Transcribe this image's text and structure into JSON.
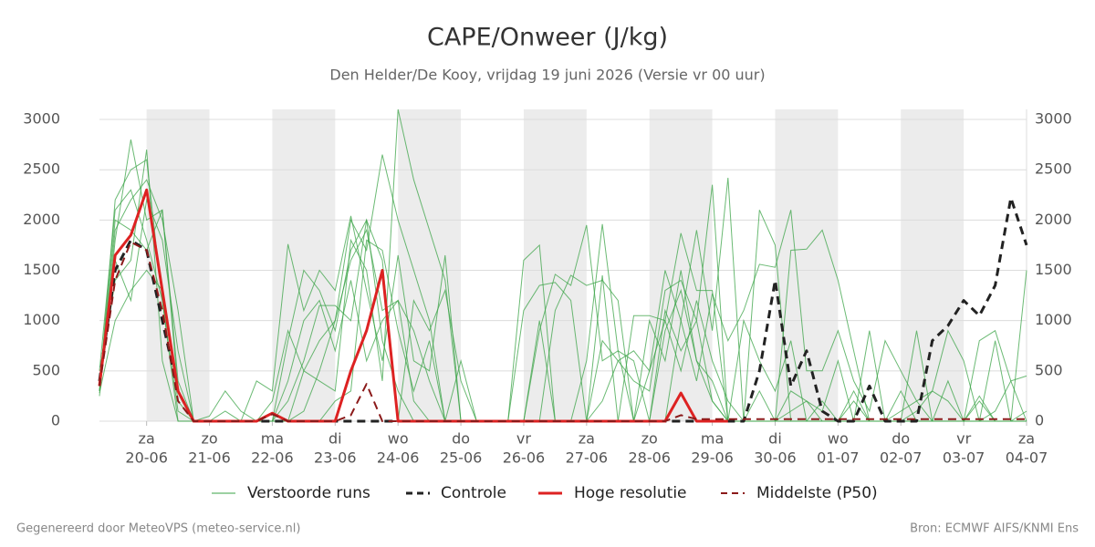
{
  "chart_data": {
    "type": "line",
    "title": "CAPE/Onweer (J/kg)",
    "subtitle": "Den Helder/De Kooy, vrijdag 19 juni 2026 (Versie vr 00 uur)",
    "footer_left": "Gegenereerd door MeteoVPS (meteo-service.nl)",
    "footer_right": "Bron: ECMWF AIFS/KNMI Ens",
    "categories": [
      null,
      null,
      null,
      "20-06",
      null,
      null,
      null,
      "21-06",
      null,
      null,
      null,
      "22-06",
      null,
      null,
      null,
      "23-06",
      null,
      null,
      null,
      "24-06",
      null,
      null,
      null,
      "25-06",
      null,
      null,
      null,
      "26-06",
      null,
      null,
      null,
      "27-06",
      null,
      null,
      null,
      "28-06",
      null,
      null,
      null,
      "29-06",
      null,
      null,
      null,
      "30-06",
      null,
      null,
      null,
      "01-07",
      null,
      null,
      null,
      "02-07",
      null,
      null,
      null,
      "03-07",
      null,
      null,
      null,
      "04-07"
    ],
    "weekdays": [
      null,
      null,
      null,
      "za",
      null,
      null,
      null,
      "zo",
      null,
      null,
      null,
      "ma",
      null,
      null,
      null,
      "di",
      null,
      null,
      null,
      "wo",
      null,
      null,
      null,
      "do",
      null,
      null,
      null,
      "vr",
      null,
      null,
      null,
      "za",
      null,
      null,
      null,
      "zo",
      null,
      null,
      null,
      "ma",
      null,
      null,
      null,
      "di",
      null,
      null,
      null,
      "wo",
      null,
      null,
      null,
      "do",
      null,
      null,
      null,
      "vr",
      null,
      null,
      null,
      "za"
    ],
    "ylim": [
      0,
      3100
    ],
    "yticks": [
      0,
      500,
      1000,
      1500,
      2000,
      2500,
      3000
    ],
    "grid": true,
    "ensemble": {
      "name": "Verstoorde runs",
      "color": "#3aa346",
      "members": [
        [
          300,
          2200,
          2500,
          2600,
          1200,
          100,
          0,
          0,
          0,
          0,
          0,
          0,
          800,
          1500,
          1300,
          900,
          1700,
          2000,
          800,
          300,
          0,
          0,
          0,
          0,
          0,
          0,
          0,
          1600,
          1750,
          0,
          0,
          0,
          0,
          0,
          0,
          0,
          900,
          1300,
          600,
          200,
          0,
          0,
          0,
          0,
          100,
          200,
          0,
          0,
          0,
          0,
          0,
          0,
          100,
          300,
          200,
          0,
          0,
          100,
          400,
          0
        ],
        [
          250,
          1800,
          2800,
          2000,
          2100,
          300,
          0,
          0,
          100,
          0,
          0,
          0,
          0,
          100,
          500,
          1000,
          2000,
          1700,
          2650,
          2000,
          1500,
          1000,
          0,
          0,
          0,
          0,
          0,
          0,
          0,
          1100,
          1450,
          1350,
          1400,
          1200,
          0,
          500,
          1000,
          1870,
          1300,
          1300,
          0,
          0,
          0,
          0,
          0,
          0,
          0,
          0,
          200,
          0,
          0,
          300,
          0,
          0,
          0,
          0,
          200,
          0,
          0,
          0
        ],
        [
          400,
          1400,
          1600,
          2700,
          600,
          0,
          0,
          0,
          0,
          0,
          0,
          0,
          0,
          500,
          400,
          300,
          1800,
          1500,
          400,
          3100,
          2400,
          1900,
          1400,
          0,
          0,
          0,
          0,
          0,
          0,
          0,
          0,
          0,
          200,
          600,
          400,
          300,
          1300,
          1400,
          1000,
          2350,
          0,
          0,
          0,
          0,
          1700,
          1710,
          1900,
          1400,
          700,
          0,
          0,
          0,
          0,
          0,
          0,
          0,
          0,
          0,
          0,
          0
        ],
        [
          350,
          2000,
          1900,
          1700,
          2100,
          400,
          0,
          0,
          0,
          0,
          400,
          300,
          1760,
          1100,
          1500,
          1300,
          2040,
          1300,
          600,
          1650,
          600,
          500,
          1650,
          0,
          0,
          0,
          0,
          0,
          1000,
          0,
          0,
          600,
          1960,
          700,
          600,
          0,
          0,
          1000,
          1900,
          900,
          2420,
          0,
          2100,
          1750,
          0,
          0,
          0,
          0,
          0,
          0,
          0,
          0,
          0,
          0,
          0,
          0,
          0,
          0,
          0,
          1500
        ],
        [
          300,
          1600,
          1200,
          2200,
          1800,
          700,
          0,
          0,
          0,
          0,
          0,
          200,
          900,
          500,
          800,
          1000,
          1600,
          1900,
          1100,
          1200,
          900,
          400,
          0,
          600,
          0,
          0,
          0,
          1100,
          1350,
          1380,
          1200,
          0,
          800,
          600,
          700,
          500,
          1500,
          1000,
          400,
          1270,
          800,
          1100,
          1560,
          1530,
          2100,
          500,
          500,
          900,
          400,
          100,
          800,
          500,
          200,
          0,
          0,
          0,
          800,
          900,
          400,
          450
        ],
        [
          280,
          1000,
          1300,
          1500,
          1300,
          200,
          0,
          50,
          300,
          100,
          0,
          0,
          400,
          1000,
          1200,
          700,
          1400,
          600,
          1000,
          1200,
          200,
          0,
          0,
          0,
          0,
          0,
          0,
          0,
          0,
          0,
          0,
          0,
          0,
          0,
          1050,
          1050,
          1000,
          500,
          1200,
          600,
          200,
          0,
          300,
          0,
          0,
          0,
          200,
          0,
          0,
          0,
          0,
          100,
          200,
          300,
          900,
          600,
          0,
          800,
          0,
          0
        ],
        [
          500,
          2100,
          2300,
          1800,
          1200,
          0,
          0,
          0,
          0,
          0,
          0,
          0,
          0,
          0,
          0,
          200,
          300,
          1800,
          1700,
          900,
          300,
          800,
          0,
          0,
          0,
          0,
          0,
          0,
          900,
          1460,
          1350,
          1950,
          600,
          700,
          0,
          0,
          1100,
          700,
          1000,
          200,
          0,
          1000,
          600,
          300,
          800,
          0,
          0,
          0,
          300,
          0,
          0,
          0,
          900,
          0,
          0,
          0,
          0,
          0,
          0,
          0
        ],
        [
          300,
          1900,
          2200,
          2400,
          2000,
          1100,
          0,
          0,
          0,
          0,
          0,
          0,
          200,
          600,
          1150,
          1150,
          1000,
          2000,
          1600,
          0,
          1200,
          900,
          1300,
          400,
          0,
          0,
          0,
          0,
          0,
          0,
          0,
          0,
          1450,
          0,
          0,
          1000,
          600,
          1500,
          600,
          400,
          0,
          0,
          0,
          0,
          300,
          200,
          100,
          600,
          0,
          900,
          0,
          0,
          0,
          0,
          400,
          0,
          250,
          0,
          0,
          100
        ]
      ]
    },
    "series": [
      {
        "name": "Controle",
        "color": "#222222",
        "dashed": true,
        "linewidth": 3,
        "values": [
          400,
          1500,
          1800,
          1700,
          1000,
          300,
          0,
          0,
          0,
          0,
          0,
          0,
          0,
          0,
          0,
          0,
          0,
          0,
          0,
          0,
          0,
          0,
          0,
          0,
          0,
          0,
          0,
          0,
          0,
          0,
          0,
          0,
          0,
          0,
          0,
          0,
          0,
          0,
          0,
          0,
          0,
          0,
          500,
          1400,
          350,
          700,
          100,
          0,
          0,
          350,
          0,
          0,
          0,
          800,
          950,
          1200,
          1050,
          1350,
          2220,
          1750
        ]
      },
      {
        "name": "Hoge resolutie",
        "color": "#dd2222",
        "dashed": false,
        "linewidth": 3,
        "values": [
          350,
          1650,
          1850,
          2300,
          1300,
          300,
          0,
          0,
          0,
          0,
          0,
          80,
          0,
          0,
          0,
          0,
          500,
          900,
          1500,
          0,
          0,
          0,
          0,
          0,
          0,
          0,
          0,
          0,
          0,
          0,
          0,
          0,
          0,
          0,
          0,
          0,
          0,
          280,
          0,
          0,
          0,
          null,
          null,
          null,
          null,
          null,
          null,
          null,
          null,
          null,
          null,
          null,
          null,
          null,
          null,
          null,
          null,
          null,
          null,
          null
        ]
      },
      {
        "name": "Middelste (P50)",
        "color": "#8b1a1a",
        "dashed": true,
        "linewidth": 2,
        "values": [
          350,
          1400,
          1780,
          1700,
          1100,
          200,
          0,
          0,
          0,
          0,
          0,
          70,
          0,
          0,
          0,
          0,
          60,
          370,
          0,
          0,
          0,
          0,
          0,
          0,
          0,
          0,
          0,
          0,
          0,
          0,
          0,
          0,
          0,
          0,
          0,
          0,
          0,
          60,
          20,
          20,
          20,
          20,
          20,
          20,
          20,
          20,
          20,
          20,
          20,
          20,
          20,
          20,
          20,
          20,
          20,
          20,
          20,
          20,
          20,
          20
        ]
      }
    ]
  }
}
